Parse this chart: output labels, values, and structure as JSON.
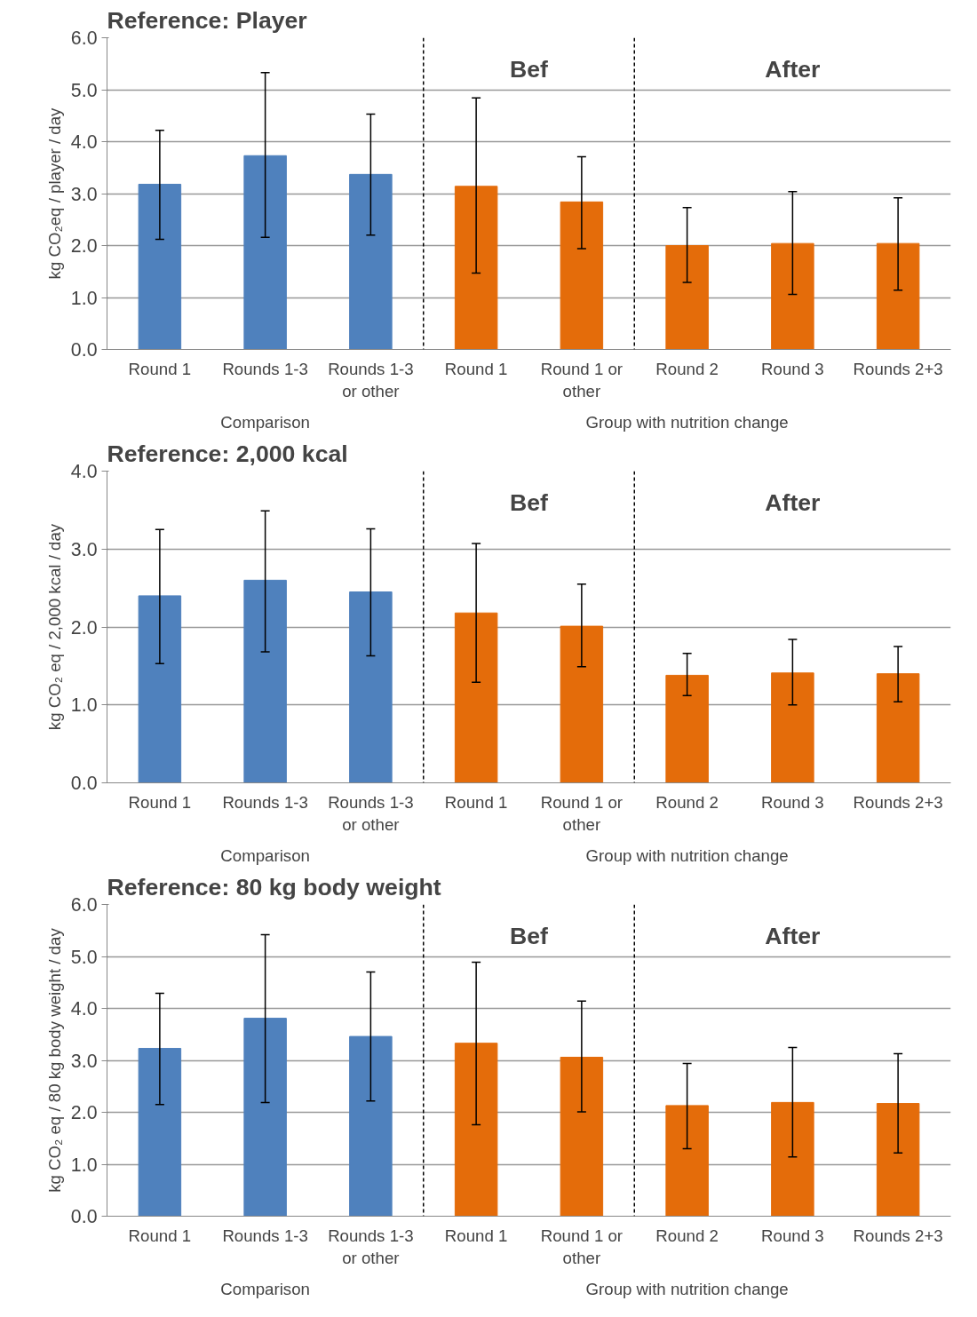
{
  "chart_data": [
    {
      "type": "bar",
      "title": "Reference: Player",
      "ylabel": "kg CO₂eq / player / day",
      "categories": [
        "Round 1",
        "Rounds 1-3",
        "Rounds 1-3 or other",
        "Round 1",
        "Round 1 or other",
        "Round 2",
        "Round 3",
        "Rounds 2+3"
      ],
      "values": [
        3.18,
        3.73,
        3.37,
        3.14,
        2.84,
        2.0,
        2.04,
        2.04
      ],
      "errors": [
        [
          2.12,
          4.22
        ],
        [
          2.16,
          5.33
        ],
        [
          2.2,
          4.53
        ],
        [
          1.47,
          4.84
        ],
        [
          1.94,
          3.71
        ],
        [
          1.29,
          2.73
        ],
        [
          1.06,
          3.04
        ],
        [
          1.14,
          2.92
        ]
      ],
      "colors": [
        "#4f81bd",
        "#4f81bd",
        "#4f81bd",
        "#e46c0a",
        "#e46c0a",
        "#e46c0a",
        "#e46c0a",
        "#e46c0a"
      ],
      "ylim": [
        0,
        6
      ],
      "yticks": [
        {
          "value": 0,
          "label": "0.0"
        },
        {
          "value": 1,
          "label": "1.0"
        },
        {
          "value": 2,
          "label": "2.0"
        },
        {
          "value": 3,
          "label": "3.0"
        },
        {
          "value": 4,
          "label": "4.0"
        },
        {
          "value": 5,
          "label": "5.0"
        },
        {
          "value": 6,
          "label": "6.0"
        }
      ],
      "grid": "y",
      "annotations": [
        "Bef",
        "After",
        "Comparison",
        "Group with nutrition change"
      ]
    },
    {
      "type": "bar",
      "title": "Reference: 2,000 kcal",
      "ylabel": "kg CO₂ eq / 2,000 kcal / day",
      "categories": [
        "Round 1",
        "Rounds 1-3",
        "Rounds 1-3 or other",
        "Round 1",
        "Round 1 or other",
        "Round 2",
        "Round 3",
        "Rounds 2+3"
      ],
      "values": [
        2.4,
        2.6,
        2.45,
        2.18,
        2.01,
        1.38,
        1.41,
        1.4
      ],
      "errors": [
        [
          1.53,
          3.25
        ],
        [
          1.68,
          3.49
        ],
        [
          1.63,
          3.26
        ],
        [
          1.29,
          3.07
        ],
        [
          1.49,
          2.55
        ],
        [
          1.12,
          1.66
        ],
        [
          1.0,
          1.84
        ],
        [
          1.04,
          1.75
        ]
      ],
      "colors": [
        "#4f81bd",
        "#4f81bd",
        "#4f81bd",
        "#e46c0a",
        "#e46c0a",
        "#e46c0a",
        "#e46c0a",
        "#e46c0a"
      ],
      "ylim": [
        0,
        4
      ],
      "yticks": [
        {
          "value": 0,
          "label": "0.0"
        },
        {
          "value": 1,
          "label": "1.0"
        },
        {
          "value": 2,
          "label": "2.0"
        },
        {
          "value": 3,
          "label": "3.0"
        },
        {
          "value": 4,
          "label": "4.0"
        }
      ],
      "grid": "y",
      "annotations": [
        "Bef",
        "After",
        "Comparison",
        "Group with nutrition change"
      ]
    },
    {
      "type": "bar",
      "title": "Reference: 80 kg body weight",
      "ylabel": "kg CO₂ eq / 80 kg body weight / day",
      "categories": [
        "Round 1",
        "Rounds 1-3",
        "Rounds 1-3 or other",
        "Round 1",
        "Round 1 or other",
        "Round 2",
        "Round 3",
        "Rounds 2+3"
      ],
      "values": [
        3.23,
        3.81,
        3.46,
        3.33,
        3.06,
        2.13,
        2.19,
        2.17
      ],
      "errors": [
        [
          2.15,
          4.29
        ],
        [
          2.19,
          5.42
        ],
        [
          2.22,
          4.7
        ],
        [
          1.76,
          4.89
        ],
        [
          2.01,
          4.14
        ],
        [
          1.3,
          2.94
        ],
        [
          1.14,
          3.25
        ],
        [
          1.22,
          3.13
        ]
      ],
      "colors": [
        "#4f81bd",
        "#4f81bd",
        "#4f81bd",
        "#e46c0a",
        "#e46c0a",
        "#e46c0a",
        "#e46c0a",
        "#e46c0a"
      ],
      "ylim": [
        0,
        6
      ],
      "yticks": [
        {
          "value": 0,
          "label": "0.0"
        },
        {
          "value": 1,
          "label": "1.0"
        },
        {
          "value": 2,
          "label": "2.0"
        },
        {
          "value": 3,
          "label": "3.0"
        },
        {
          "value": 4,
          "label": "4.0"
        },
        {
          "value": 5,
          "label": "5.0"
        },
        {
          "value": 6,
          "label": "6.0"
        }
      ],
      "grid": "y",
      "annotations": [
        "Bef",
        "After",
        "Comparison",
        "Group with nutrition change"
      ]
    }
  ]
}
